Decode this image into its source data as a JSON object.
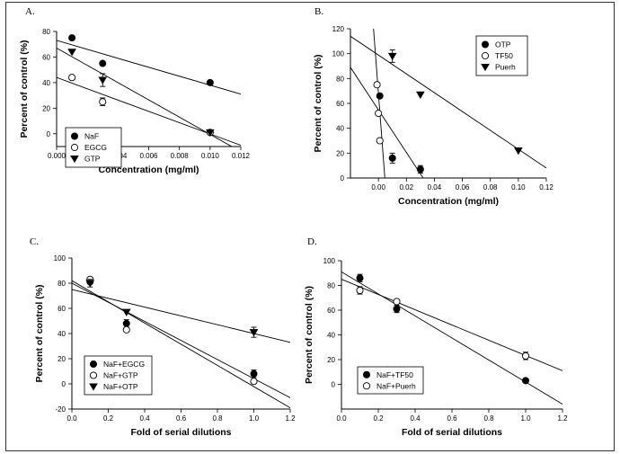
{
  "chart_data": [
    {
      "panel": "A.",
      "type": "scatter",
      "xlabel": "Concentration (mg/ml)",
      "ylabel": "Percent of control (%)",
      "xlim": [
        0,
        0.012
      ],
      "ylim": [
        -10,
        80
      ],
      "xticks": [
        0,
        0.002,
        0.004,
        0.006,
        0.008,
        0.01,
        0.012
      ],
      "xtick_labels": [
        "0.000",
        "0.002",
        "0.004",
        "0.006",
        "0.008",
        "0.010",
        "0.012"
      ],
      "yticks": [
        0,
        20,
        40,
        60,
        80
      ],
      "ytick_labels": [
        "0",
        "20",
        "40",
        "60",
        "80"
      ],
      "legend_position": "bottom-left",
      "series": [
        {
          "name": "NaF",
          "marker": "filled-circle",
          "x": [
            0.001,
            0.003,
            0.01
          ],
          "y": [
            75,
            55,
            40
          ],
          "err": [
            0,
            0,
            0
          ],
          "fit": [
            0,
            0.012,
            73,
            31
          ]
        },
        {
          "name": "EGCG",
          "marker": "open-circle",
          "x": [
            0.001,
            0.003,
            0.01
          ],
          "y": [
            44,
            25,
            1
          ],
          "err": [
            0,
            3,
            0
          ],
          "fit": [
            0,
            0.012,
            44,
            -9
          ]
        },
        {
          "name": "GTP",
          "marker": "filled-triangle",
          "x": [
            0.001,
            0.003,
            0.01
          ],
          "y": [
            64,
            42,
            1
          ],
          "err": [
            0,
            5,
            0
          ],
          "fit": [
            0,
            0.012,
            67,
            -14
          ]
        }
      ]
    },
    {
      "panel": "B.",
      "type": "scatter",
      "xlabel": "Concentration (mg/ml)",
      "ylabel": "Percent of control (%)",
      "xlim": [
        -0.02,
        0.12
      ],
      "ylim": [
        0,
        120
      ],
      "xticks": [
        0,
        0.02,
        0.04,
        0.06,
        0.08,
        0.1,
        0.12
      ],
      "xtick_labels": [
        "0.00",
        "0.02",
        "0.04",
        "0.06",
        "0.08",
        "0.10",
        "0.12"
      ],
      "yticks": [
        0,
        20,
        40,
        60,
        80,
        100,
        120
      ],
      "ytick_labels": [
        "0",
        "20",
        "40",
        "60",
        "80",
        "100",
        "120"
      ],
      "legend_position": "top-right",
      "series": [
        {
          "name": "OTP",
          "marker": "filled-circle",
          "x": [
            0.001,
            0.01,
            0.03
          ],
          "y": [
            66,
            16,
            7
          ],
          "err": [
            0,
            4,
            3
          ],
          "fit": [
            -0.02,
            0.032,
            89,
            0
          ]
        },
        {
          "name": "TF50",
          "marker": "open-circle",
          "x": [
            -0.001,
            0,
            0.001
          ],
          "y": [
            75,
            52,
            30
          ],
          "err": [
            0,
            0,
            0
          ],
          "fit": [
            -0.0035,
            0.0046,
            120,
            0
          ]
        },
        {
          "name": "Puerh",
          "marker": "filled-triangle",
          "x": [
            0.01,
            0.03,
            0.1
          ],
          "y": [
            98,
            67,
            22
          ],
          "err": [
            5,
            0,
            0
          ],
          "fit": [
            -0.02,
            0.12,
            114,
            8
          ]
        }
      ]
    },
    {
      "panel": "C.",
      "type": "scatter",
      "xlabel": "Fold of serial dilutions",
      "ylabel": "Percent of control (%)",
      "xlim": [
        0,
        1.2
      ],
      "ylim": [
        -20,
        100
      ],
      "xticks": [
        0,
        0.2,
        0.4,
        0.6,
        0.8,
        1.0,
        1.2
      ],
      "xtick_labels": [
        "0.0",
        "0.2",
        "0.4",
        "0.6",
        "0.8",
        "1.0",
        "1.2"
      ],
      "yticks": [
        -20,
        0,
        20,
        40,
        60,
        80,
        100
      ],
      "ytick_labels": [
        "-20",
        "0",
        "20",
        "40",
        "60",
        "80",
        "100"
      ],
      "legend_position": "bottom-left",
      "series": [
        {
          "name": "NaF+EGCG",
          "marker": "filled-circle",
          "x": [
            0.1,
            0.3,
            1.0
          ],
          "y": [
            81,
            48,
            8
          ],
          "err": [
            0,
            3,
            3
          ],
          "fit": [
            0,
            1.2,
            80,
            -11
          ]
        },
        {
          "name": "NaF+GTP",
          "marker": "open-circle",
          "x": [
            0.1,
            0.3,
            1.0
          ],
          "y": [
            83,
            43,
            2
          ],
          "err": [
            0,
            0,
            0
          ],
          "fit": [
            0,
            1.2,
            82,
            -19
          ]
        },
        {
          "name": "NaF+OTP",
          "marker": "filled-triangle",
          "x": [
            0.1,
            0.3,
            1.0
          ],
          "y": [
            80,
            57,
            41
          ],
          "err": [
            3,
            0,
            4
          ],
          "fit": [
            0,
            1.2,
            75,
            33
          ]
        }
      ]
    },
    {
      "panel": "D.",
      "type": "scatter",
      "xlabel": "Fold of serial dilutions",
      "ylabel": "Percent of control (%)",
      "xlim": [
        0,
        1.2
      ],
      "ylim": [
        -20,
        100
      ],
      "xticks": [
        0,
        0.2,
        0.4,
        0.6,
        0.8,
        1.0,
        1.2
      ],
      "xtick_labels": [
        "0.0",
        "0.2",
        "0.4",
        "0.6",
        "0.8",
        "1.0",
        "1.2"
      ],
      "yticks": [
        0,
        20,
        40,
        60,
        80,
        100
      ],
      "ytick_labels": [
        "0",
        "20",
        "40",
        "60",
        "80",
        "100"
      ],
      "legend_position": "bottom-left",
      "series": [
        {
          "name": "NaF+TF50",
          "marker": "filled-circle",
          "x": [
            0.1,
            0.3,
            1.0
          ],
          "y": [
            86,
            61,
            3
          ],
          "err": [
            3,
            3,
            0
          ],
          "fit": [
            0,
            1.2,
            91,
            -16
          ]
        },
        {
          "name": "NaF+Puerh",
          "marker": "open-circle",
          "x": [
            0.1,
            0.3,
            1.0
          ],
          "y": [
            76,
            67,
            23
          ],
          "err": [
            3,
            0,
            3
          ],
          "fit": [
            0,
            1.2,
            85,
            11
          ]
        }
      ]
    }
  ]
}
